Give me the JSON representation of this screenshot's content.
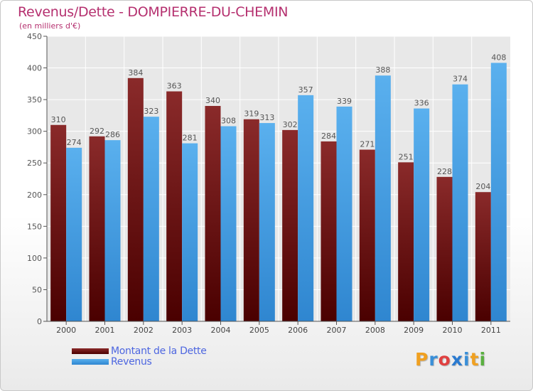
{
  "header": {
    "title": "Revenus/Dette - DOMPIERRE-DU-CHEMIN",
    "subtitle": "(en milliers d'€)"
  },
  "chart_data": {
    "type": "bar",
    "categories": [
      "2000",
      "2001",
      "2002",
      "2003",
      "2004",
      "2005",
      "2006",
      "2007",
      "2008",
      "2009",
      "2010",
      "2011"
    ],
    "series": [
      {
        "name": "Montant de la Dette",
        "values": [
          310,
          292,
          384,
          363,
          340,
          319,
          302,
          284,
          271,
          251,
          228,
          204
        ],
        "color": "#7a1a1a"
      },
      {
        "name": "Revenus",
        "values": [
          274,
          286,
          323,
          281,
          308,
          313,
          357,
          339,
          388,
          336,
          374,
          408
        ],
        "color": "#4aa3e6"
      }
    ],
    "ylim": [
      0,
      450
    ],
    "yticks": [
      0,
      50,
      100,
      150,
      200,
      250,
      300,
      350,
      400,
      450
    ],
    "grid": true,
    "legend_position": "bottom-left",
    "title": "Revenus/Dette - DOMPIERRE-DU-CHEMIN",
    "xlabel": "",
    "ylabel": ""
  },
  "legend": [
    {
      "label": "Montant de la Dette",
      "color": "#6e0f0f"
    },
    {
      "label": "Revenus",
      "color": "#3f9ae0"
    }
  ],
  "logo": {
    "letters": [
      "P",
      "r",
      "o",
      "x",
      "i",
      "t",
      "i"
    ],
    "colors": [
      "#f0a020",
      "#3a8fd8",
      "#e04040",
      "#2a7ad0",
      "#3a8fd8",
      "#f0a020",
      "#5ab040"
    ]
  }
}
